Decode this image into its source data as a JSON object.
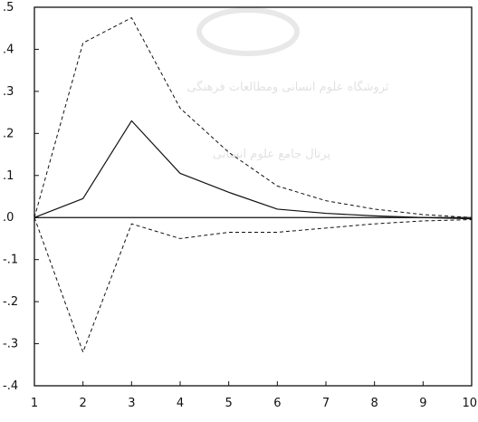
{
  "chart_data": {
    "type": "line",
    "title": "",
    "xlabel": "",
    "ylabel": "",
    "x": [
      1,
      2,
      3,
      4,
      5,
      6,
      7,
      8,
      9,
      10
    ],
    "xlim": [
      1,
      10
    ],
    "ylim": [
      -0.4,
      0.5
    ],
    "x_ticks": [
      "1",
      "2",
      "3",
      "4",
      "5",
      "6",
      "7",
      "8",
      "9",
      "10"
    ],
    "y_tick_values": [
      0.5,
      0.4,
      0.3,
      0.2,
      0.1,
      0.0,
      -0.1,
      -0.2,
      -0.3,
      -0.4
    ],
    "y_ticks": [
      ".5",
      ".4",
      ".3",
      ".2",
      ".1",
      ".0",
      "-.1",
      "-.2",
      "-.3",
      "-.4"
    ],
    "zero_line": true,
    "grid": false,
    "legend": "none",
    "series": [
      {
        "style": "solid",
        "values": [
          0.0,
          0.045,
          0.23,
          0.105,
          0.06,
          0.02,
          0.01,
          0.004,
          0.0,
          -0.003
        ]
      },
      {
        "style": "dashed",
        "values": [
          0.0,
          0.415,
          0.475,
          0.26,
          0.155,
          0.075,
          0.04,
          0.02,
          0.007,
          0.0
        ]
      },
      {
        "style": "dashed",
        "values": [
          0.0,
          -0.32,
          -0.015,
          -0.05,
          -0.035,
          -0.035,
          -0.025,
          -0.015,
          -0.008,
          -0.005
        ]
      }
    ],
    "colors": {
      "line": "#111111",
      "axis": "#111111",
      "background": "#ffffff"
    }
  },
  "watermark": {
    "line1": "ثروشگاه علوم انسانی ومطالعات فرهنگی",
    "line2": "پرتال جامع علوم انسانی"
  }
}
